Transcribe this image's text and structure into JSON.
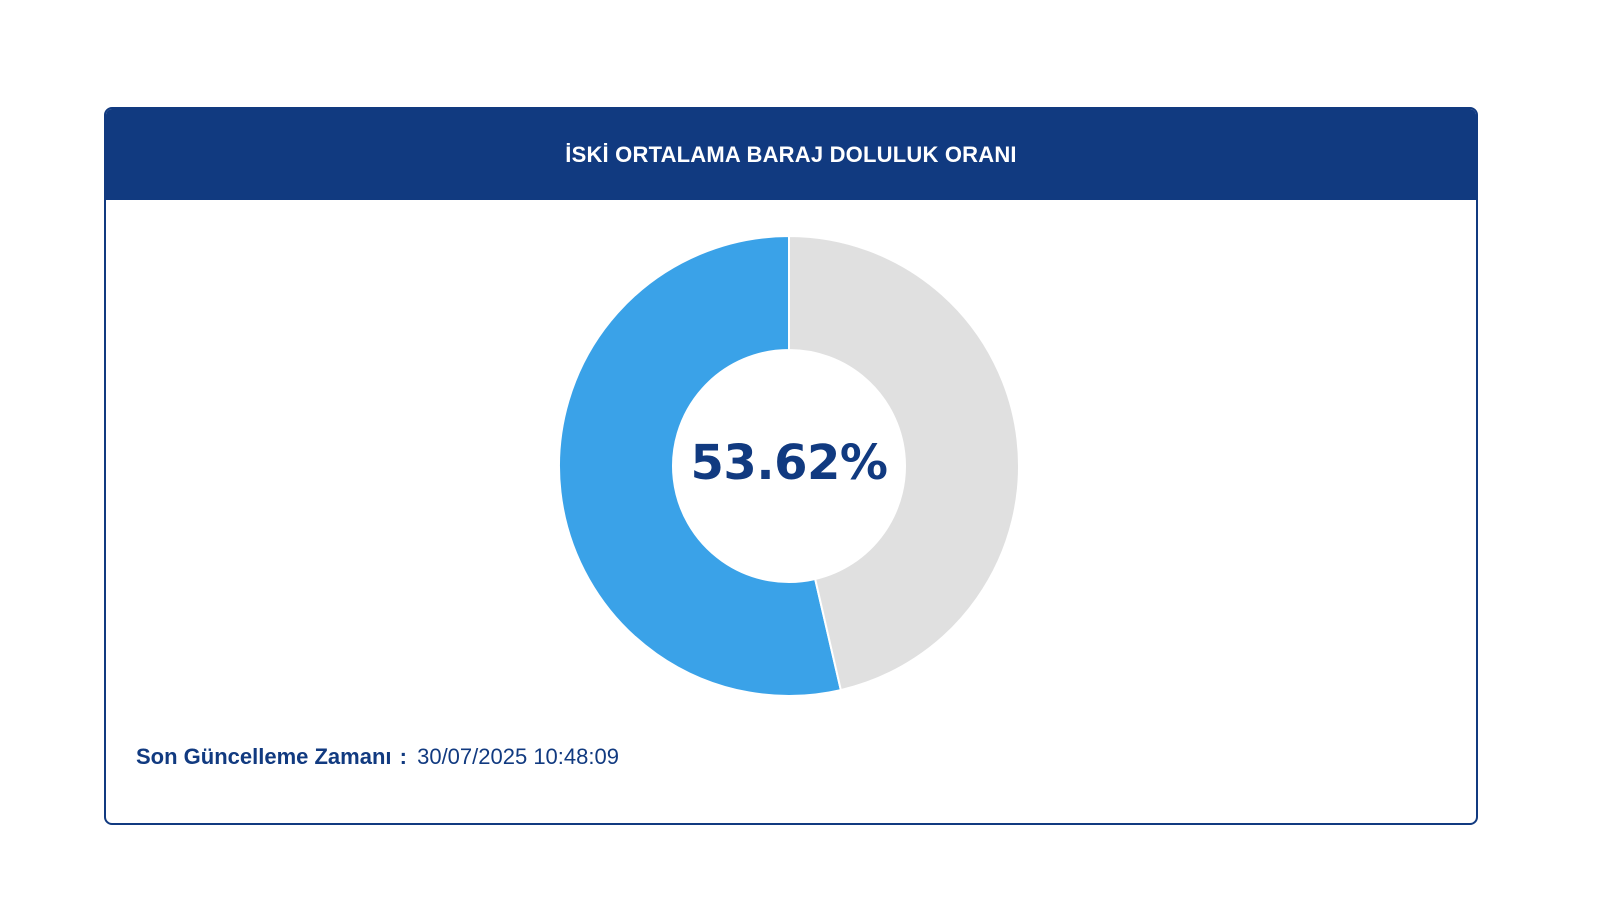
{
  "header": {
    "title": "İSKİ ORTALAMA BARAJ DOLULUK ORANI"
  },
  "chart_data": {
    "type": "pie",
    "title": "İSKİ ORTALAMA BARAJ DOLULUK ORANI",
    "center_label": "53.62%",
    "slices": [
      {
        "value": 53.62,
        "color": "#3aa2e8"
      },
      {
        "value": 46.38,
        "color": "#e0e0e0"
      }
    ],
    "donut": true
  },
  "footer": {
    "label": "Son Güncelleme Zamanı",
    "separator": ":",
    "timestamp": "30/07/2025 10:48:09"
  },
  "colors": {
    "brand": "#113a80",
    "filled": "#3aa2e8",
    "empty": "#e0e0e0"
  }
}
